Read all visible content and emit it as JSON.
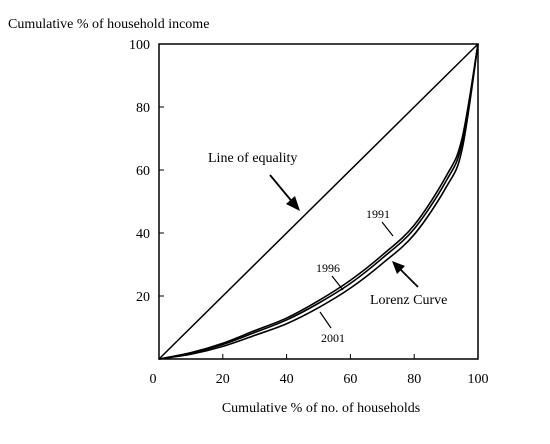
{
  "chart_data": {
    "type": "line",
    "ylabel": "Cumulative % of household income",
    "xlabel": "Cumulative % of no. of households",
    "xlim": [
      0,
      100
    ],
    "ylim": [
      0,
      100
    ],
    "x_ticks": [
      20,
      40,
      60,
      80,
      100
    ],
    "y_ticks": [
      20,
      40,
      60,
      80,
      100
    ],
    "origin_label": "0",
    "grid": false,
    "series": [
      {
        "name": "Line of equality",
        "x": [
          0,
          100
        ],
        "y": [
          0,
          100
        ]
      },
      {
        "name": "1991",
        "x": [
          0,
          10,
          20,
          30,
          40,
          50,
          60,
          70,
          80,
          90,
          95,
          100
        ],
        "y": [
          0,
          2,
          5,
          9,
          13,
          18.5,
          25,
          33,
          42.5,
          58,
          70,
          100
        ]
      },
      {
        "name": "1996",
        "x": [
          0,
          10,
          20,
          30,
          40,
          50,
          60,
          70,
          80,
          90,
          95,
          100
        ],
        "y": [
          0,
          1.8,
          4.6,
          8.4,
          12.4,
          17.7,
          24,
          32,
          41.3,
          56.5,
          68.5,
          100
        ]
      },
      {
        "name": "2001",
        "x": [
          0,
          10,
          20,
          30,
          40,
          50,
          60,
          70,
          80,
          90,
          95,
          100
        ],
        "y": [
          0,
          1.5,
          4,
          7.5,
          11.2,
          16.3,
          22.5,
          30.3,
          39.5,
          54.5,
          66.5,
          100
        ]
      }
    ],
    "annotations": {
      "line_of_equality": "Line of equality",
      "lorenz_curve": "Lorenz Curve",
      "year_1991": "1991",
      "year_1996": "1996",
      "year_2001": "2001"
    },
    "colors": {
      "axes": "#000000",
      "lines": "#000000",
      "background": "#ffffff"
    }
  }
}
